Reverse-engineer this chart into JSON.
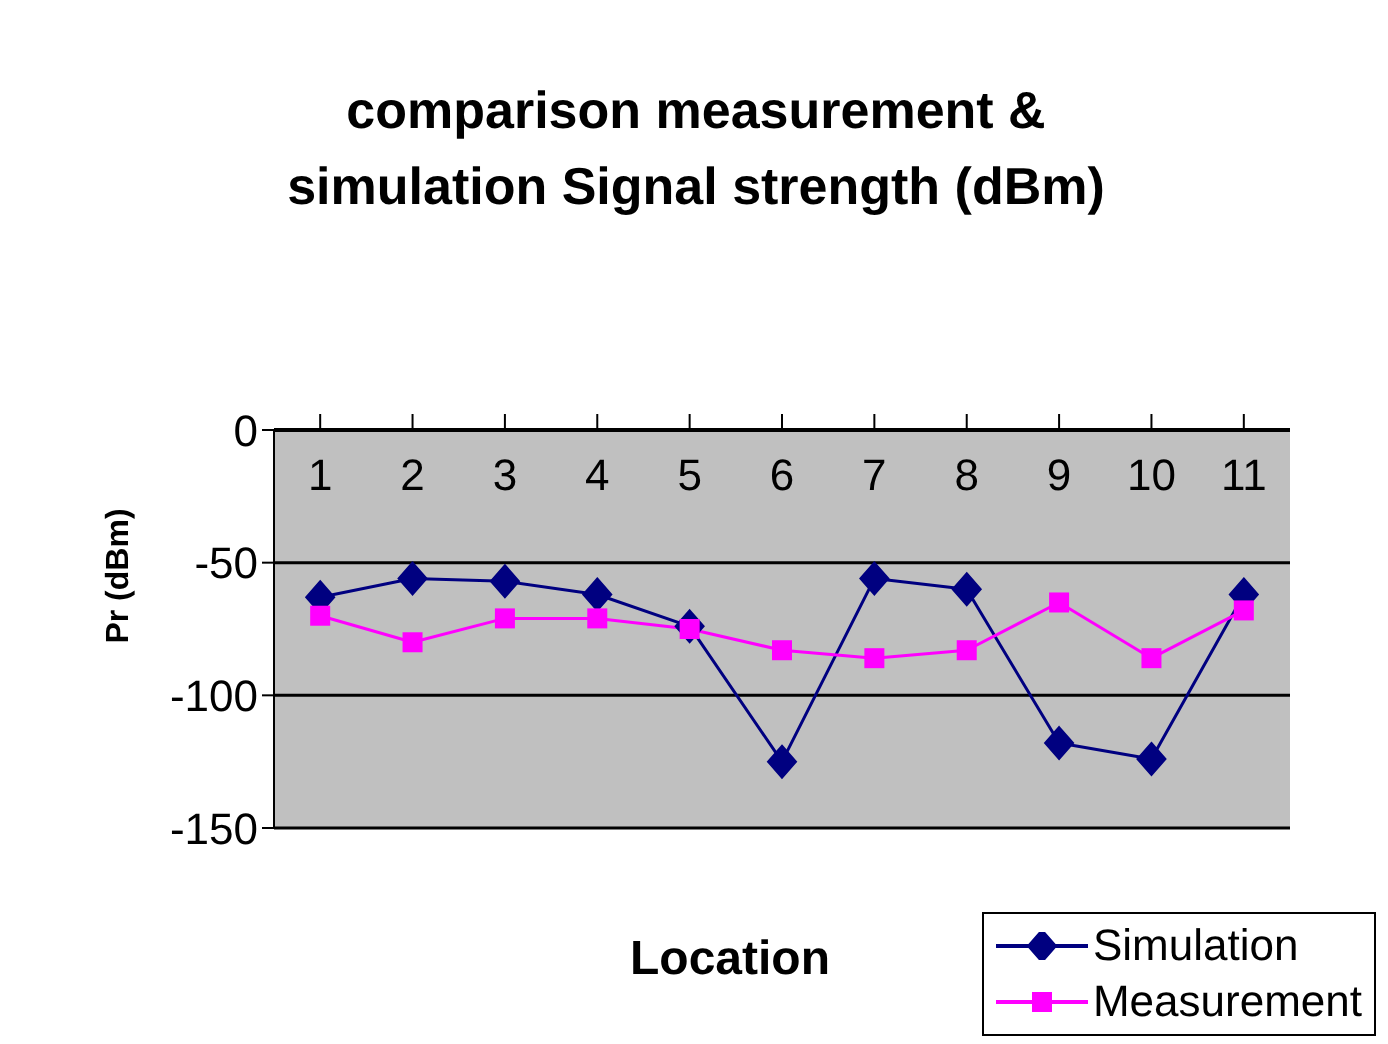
{
  "chart_data": {
    "type": "line",
    "title": "comparison measurement &\nsimulation Signal strength (dBm)",
    "xlabel": "Location",
    "ylabel": "Pr (dBm)",
    "categories": [
      "1",
      "2",
      "3",
      "4",
      "5",
      "6",
      "7",
      "8",
      "9",
      "10",
      "11"
    ],
    "series": [
      {
        "name": "Simulation",
        "color": "#000080",
        "marker": "diamond",
        "values": [
          -63,
          -56,
          -57,
          -62,
          -74,
          -125,
          -56,
          -60,
          -118,
          -124,
          -62
        ]
      },
      {
        "name": "Measurement",
        "color": "#ff00ff",
        "marker": "square",
        "values": [
          -70,
          -80,
          -71,
          -71,
          -75,
          -83,
          -86,
          -83,
          -65,
          -86,
          -68
        ]
      }
    ],
    "ylim": [
      -150,
      0
    ],
    "yticks": [
      0,
      -50,
      -100,
      -150
    ],
    "grid": "y",
    "legend": "bottom right"
  }
}
